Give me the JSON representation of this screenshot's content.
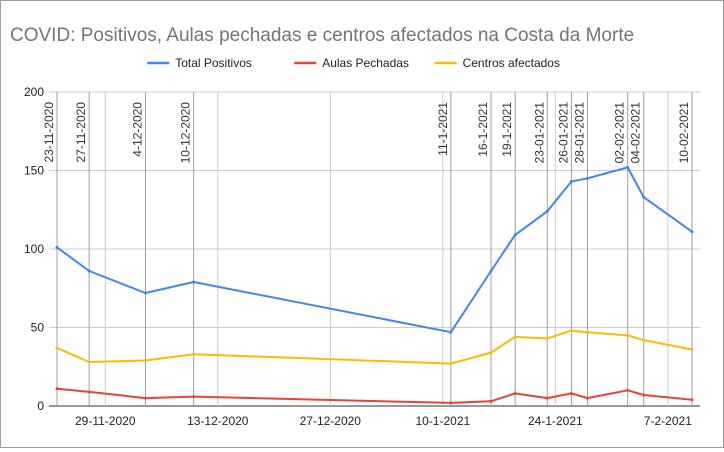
{
  "chart_data": {
    "type": "line",
    "title": "COVID: Positivos, Aulas pechadas e centros afectados na Costa da Morte",
    "xlabel": "",
    "ylabel": "",
    "ylim": [
      0,
      200
    ],
    "yticks": [
      0,
      50,
      100,
      150,
      200
    ],
    "grid": true,
    "legend_position": "top",
    "x_axis_type": "date",
    "xlim": [
      "2020-11-22",
      "2021-02-11"
    ],
    "x_tick_labels": [
      {
        "date": "2020-11-29",
        "label": "29-11-2020"
      },
      {
        "date": "2020-12-13",
        "label": "13-12-2020"
      },
      {
        "date": "2020-12-27",
        "label": "27-12-2020"
      },
      {
        "date": "2021-01-10",
        "label": "10-1-2021"
      },
      {
        "date": "2021-01-24",
        "label": "24-1-2021"
      },
      {
        "date": "2021-02-07",
        "label": "7-2-2021"
      }
    ],
    "dates": [
      "2020-11-23",
      "2020-11-27",
      "2020-12-04",
      "2020-12-10",
      "2021-01-11",
      "2021-01-16",
      "2021-01-19",
      "2021-01-23",
      "2021-01-26",
      "2021-01-28",
      "2021-02-02",
      "2021-02-04",
      "2021-02-10"
    ],
    "date_annotations": [
      "23-11-2020",
      "27-11-2020",
      "4-12-2020",
      "10-12-2020",
      "11-1-2021",
      "16-1-2021",
      "19-1-2021",
      "23-01-2021",
      "26-01-2021",
      "28-01-2021",
      "02-02-2021",
      "04-02-2021",
      "10-02-2021"
    ],
    "series": [
      {
        "name": "Total Positivos",
        "color": "#4285f4",
        "values": [
          101,
          86,
          72,
          79,
          47,
          86,
          109,
          124,
          143,
          145,
          152,
          133,
          111
        ]
      },
      {
        "name": "Aulas Pechadas",
        "color": "#ea4335",
        "values": [
          11,
          9,
          5,
          6,
          2,
          3,
          8,
          5,
          8,
          5,
          10,
          7,
          4
        ]
      },
      {
        "name": "Centros afectados",
        "color": "#fbbc04",
        "values": [
          37,
          28,
          29,
          33,
          27,
          34,
          44,
          43,
          48,
          47,
          45,
          42,
          36
        ]
      }
    ]
  }
}
